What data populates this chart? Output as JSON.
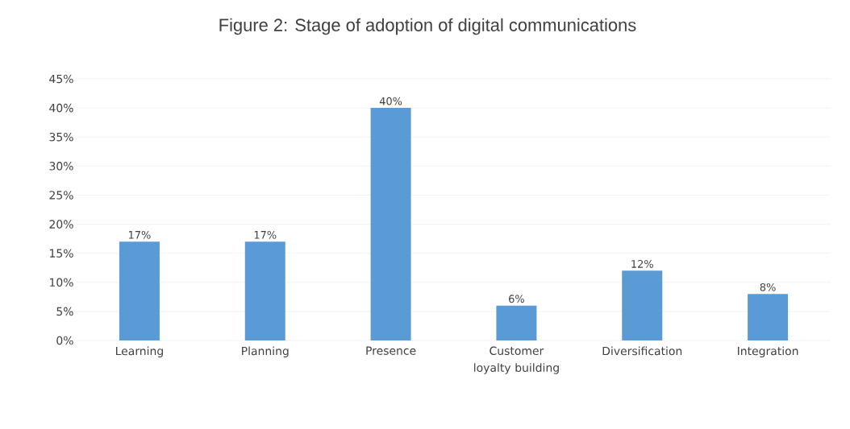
{
  "chart_data": {
    "type": "bar",
    "title": "Figure 2: Stage of adoption of digital communications",
    "categories": [
      "Learning",
      "Planning",
      "Presence",
      "Customer loyalty building",
      "Diversification",
      "Integration"
    ],
    "values": [
      17,
      17,
      40,
      6,
      12,
      8
    ],
    "value_labels": [
      "17%",
      "17%",
      "40%",
      "6%",
      "12%",
      "8%"
    ],
    "color": "#5b9bd5",
    "ylim": [
      0,
      45
    ],
    "yticks": [
      {
        "value": 0,
        "label": "0%"
      },
      {
        "value": 5,
        "label": "5%"
      },
      {
        "value": 10,
        "label": "10%"
      },
      {
        "value": 15,
        "label": "15%"
      },
      {
        "value": 20,
        "label": "20%"
      },
      {
        "value": 25,
        "label": "25%"
      },
      {
        "value": 30,
        "label": "30%"
      },
      {
        "value": 35,
        "label": "35%"
      },
      {
        "value": 40,
        "label": "40%"
      },
      {
        "value": 45,
        "label": "45%"
      }
    ],
    "grid": "y"
  }
}
